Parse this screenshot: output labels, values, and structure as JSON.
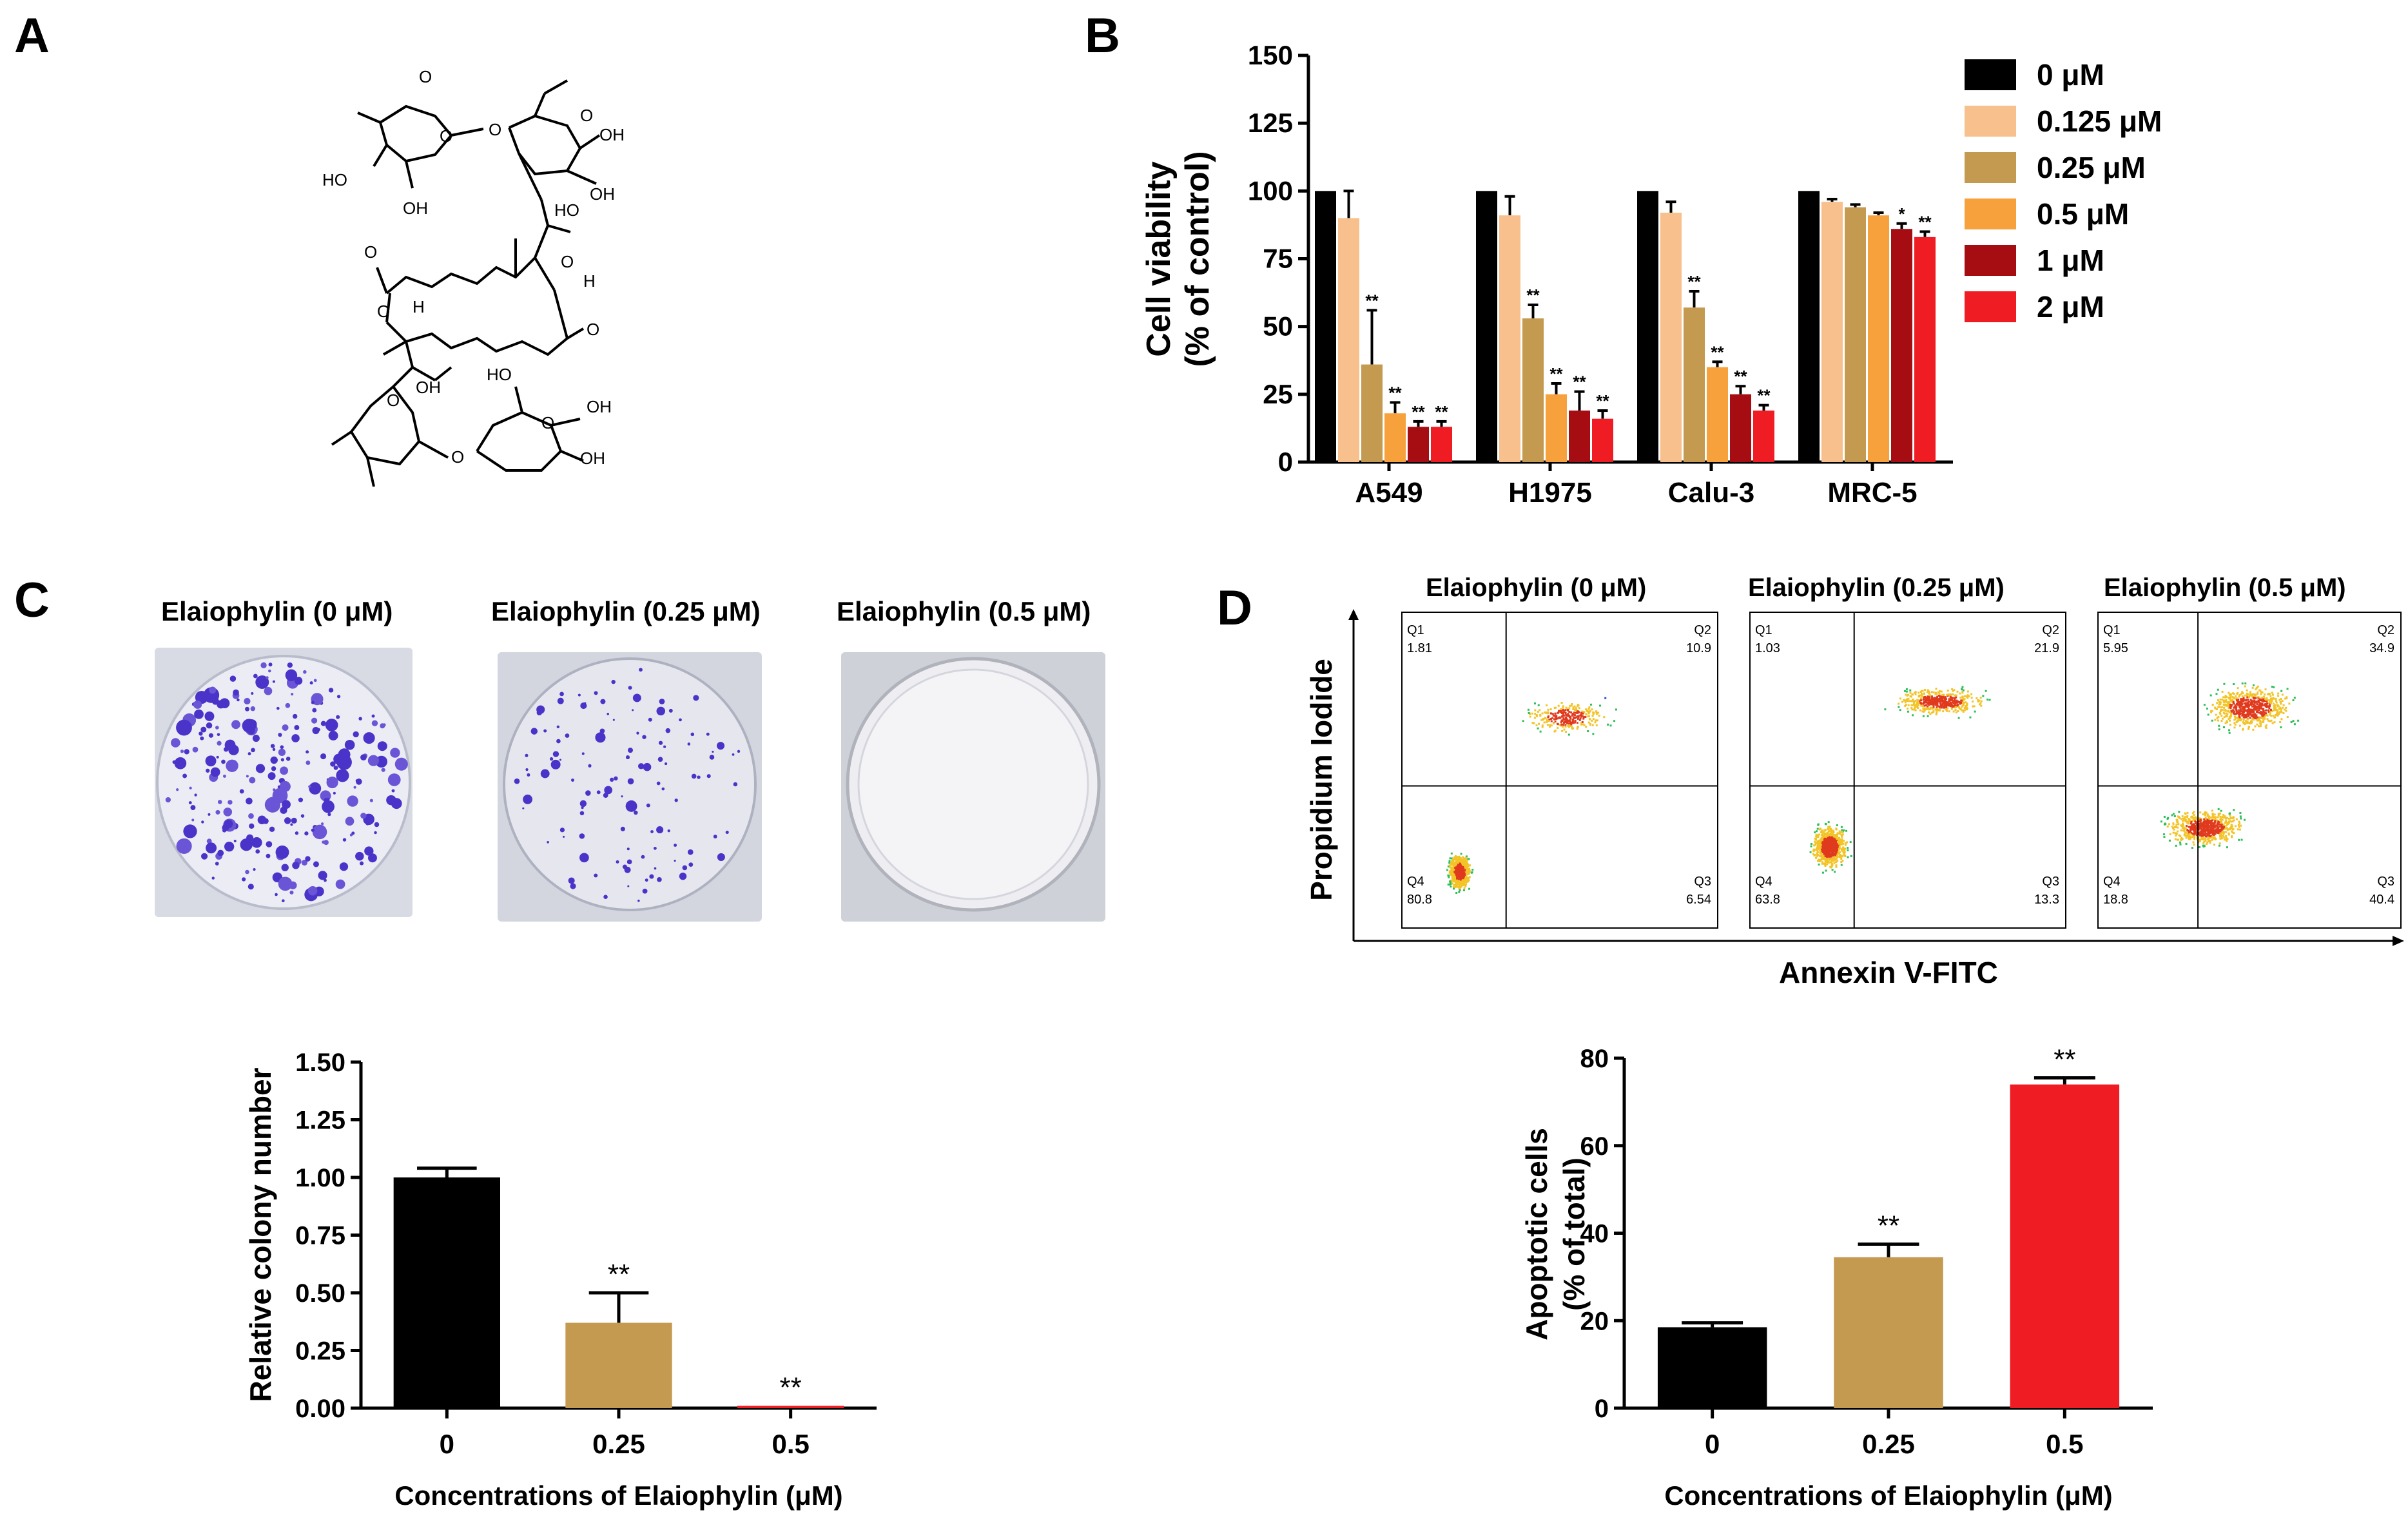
{
  "panels": {
    "A": "A",
    "B": "B",
    "C": "C",
    "D": "D"
  },
  "structure": {
    "labels": [
      "HO",
      "OH",
      "OH",
      "HO",
      "HO",
      "OH",
      "OH",
      "OH",
      "H",
      "H",
      "OH",
      "O",
      "O",
      "O",
      "O",
      "O",
      "O",
      "O",
      "O",
      "O",
      "O",
      "O"
    ]
  },
  "chart_b": {
    "type": "bar",
    "ylabel_line1": "Cell viability",
    "ylabel_line2": "(% of control)",
    "ylim": [
      0,
      150
    ],
    "yticks": [
      "0",
      "25",
      "50",
      "75",
      "100",
      "125",
      "150"
    ],
    "categories": [
      "A549",
      "H1975",
      "Calu-3",
      "MRC-5"
    ],
    "series": [
      {
        "name": "0 μM",
        "color": "#000000",
        "values": [
          100,
          100,
          100,
          100
        ],
        "errors": [
          0,
          0,
          0,
          0
        ],
        "sig": [
          "",
          "",
          "",
          ""
        ]
      },
      {
        "name": "0.125 μM",
        "color": "#f8c08c",
        "values": [
          90,
          91,
          92,
          96
        ],
        "errors": [
          10,
          7,
          4,
          1
        ],
        "sig": [
          "",
          "",
          "",
          ""
        ]
      },
      {
        "name": "0.25 μM",
        "color": "#c49a50",
        "values": [
          36,
          53,
          57,
          94
        ],
        "errors": [
          20,
          5,
          6,
          1
        ],
        "sig": [
          "**",
          "**",
          "**",
          ""
        ]
      },
      {
        "name": "0.5 μM",
        "color": "#f7a13c",
        "values": [
          18,
          25,
          35,
          91
        ],
        "errors": [
          4,
          4,
          2,
          1
        ],
        "sig": [
          "**",
          "**",
          "**",
          ""
        ]
      },
      {
        "name": "1 μM",
        "color": "#a50d12",
        "values": [
          13,
          19,
          25,
          86
        ],
        "errors": [
          2,
          7,
          3,
          2
        ],
        "sig": [
          "**",
          "**",
          "**",
          "*"
        ]
      },
      {
        "name": "2 μM",
        "color": "#ef1c23",
        "values": [
          13,
          16,
          19,
          83
        ],
        "errors": [
          2,
          3,
          2,
          2
        ],
        "sig": [
          "**",
          "**",
          "**",
          "**"
        ]
      }
    ]
  },
  "colony": {
    "titles": [
      "Elaiophylin (0 μM)",
      "Elaiophylin (0.25 μM)",
      "Elaiophylin (0.5 μM)"
    ]
  },
  "chart_c": {
    "type": "bar",
    "ylabel": "Relative colony number",
    "xlabel": "Concentrations of Elaiophylin (μM)",
    "ylim": [
      0,
      1.5
    ],
    "yticks": [
      "0.00",
      "0.25",
      "0.50",
      "0.75",
      "1.00",
      "1.25",
      "1.50"
    ],
    "categories": [
      "0",
      "0.25",
      "0.5"
    ],
    "values": [
      1.0,
      0.37,
      0.01
    ],
    "errors": [
      0.04,
      0.13,
      0.0
    ],
    "colors": [
      "#000000",
      "#c49a50",
      "#ef1c23"
    ],
    "sig": [
      "",
      "**",
      "**"
    ]
  },
  "flow": {
    "ylabel": "Propidium Iodide",
    "xlabel": "Annexin V-FITC",
    "plots": [
      {
        "title": "Elaiophylin (0 μM)",
        "q1": "Q1",
        "q1v": "1.81",
        "q2": "Q2",
        "q2v": "10.9",
        "q3": "Q3",
        "q3v": "6.54",
        "q4": "Q4",
        "q4v": "80.8"
      },
      {
        "title": "Elaiophylin (0.25 μM)",
        "q1": "Q1",
        "q1v": "1.03",
        "q2": "Q2",
        "q2v": "21.9",
        "q3": "Q3",
        "q3v": "13.3",
        "q4": "Q4",
        "q4v": "63.8"
      },
      {
        "title": "Elaiophylin (0.5 μM)",
        "q1": "Q1",
        "q1v": "5.95",
        "q2": "Q2",
        "q2v": "34.9",
        "q3": "Q3",
        "q3v": "40.4",
        "q4": "Q4",
        "q4v": "18.8"
      }
    ]
  },
  "chart_d": {
    "type": "bar",
    "ylabel_line1": "Apoptotic cells",
    "ylabel_line2": "(% of total)",
    "xlabel": "Concentrations of Elaiophylin (μM)",
    "ylim": [
      0,
      80
    ],
    "yticks": [
      "0",
      "20",
      "40",
      "60",
      "80"
    ],
    "categories": [
      "0",
      "0.25",
      "0.5"
    ],
    "values": [
      18.5,
      34.5,
      74
    ],
    "errors": [
      1,
      3,
      1.5
    ],
    "colors": [
      "#000000",
      "#c49a50",
      "#ef1c23"
    ],
    "sig": [
      "",
      "**",
      "**"
    ]
  }
}
